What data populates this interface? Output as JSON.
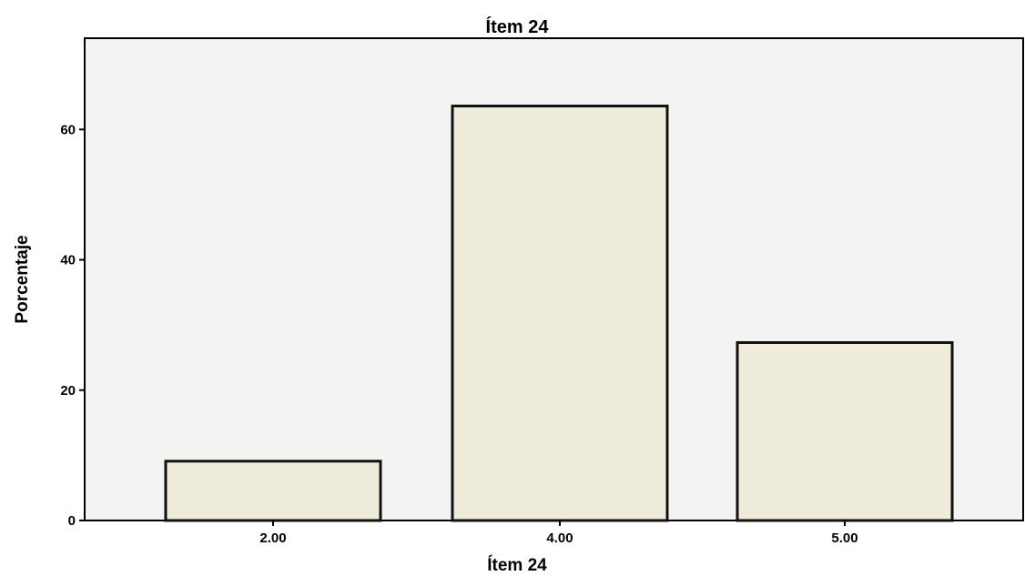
{
  "chart_data": {
    "type": "bar",
    "title": "Ítem 24",
    "xlabel": "Ítem 24",
    "ylabel": "Porcentaje",
    "categories": [
      "2.00",
      "4.00",
      "5.00"
    ],
    "values": [
      9.1,
      63.6,
      27.3
    ],
    "ylim": [
      0,
      74
    ],
    "yticks": [
      0,
      20,
      40,
      60
    ],
    "grid": false,
    "legend": "none",
    "colors": {
      "bar_fill": "#efecdc",
      "bar_stroke": "#111111",
      "plot_background": "#f3f3f1",
      "axis": "#000000"
    }
  }
}
